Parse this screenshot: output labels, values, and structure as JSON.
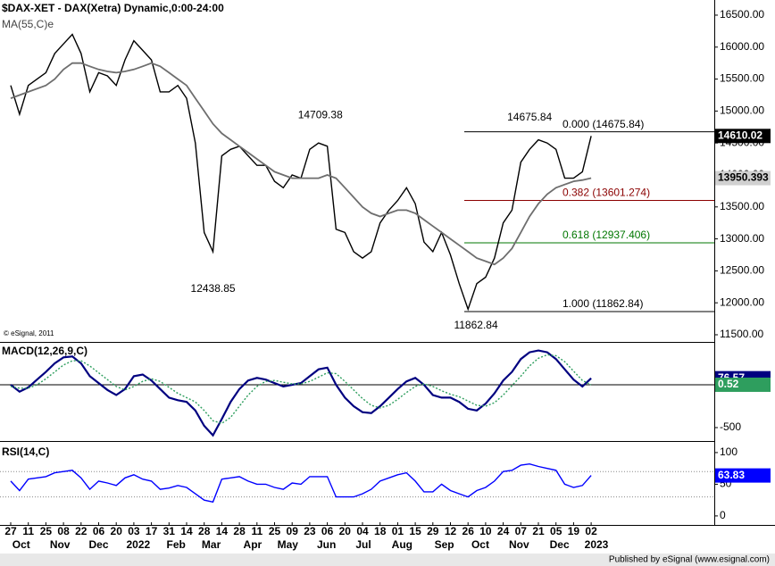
{
  "chart_data": [
    {
      "type": "line",
      "title": "$DAX-XET - DAX(Xetra) Dynamic,0:00-24:00",
      "subtitle": "MA(55,C)e",
      "source": "© eSignal, 2011",
      "publisher": "Published by eSignal (www.esignal.com)",
      "xticks": [
        "27",
        "11",
        "25",
        "08",
        "22",
        "06",
        "20",
        "03",
        "17",
        "31",
        "14",
        "28",
        "14",
        "28",
        "11",
        "25",
        "09",
        "23",
        "06",
        "20",
        "04",
        "18",
        "01",
        "15",
        "29",
        "12",
        "26",
        "10",
        "24",
        "07",
        "21",
        "05",
        "19",
        "02"
      ],
      "months": [
        "Oct",
        "Nov",
        "Dec",
        "2022",
        "Feb",
        "Mar",
        "Apr",
        "May",
        "Jun",
        "Jul",
        "Aug",
        "Sep",
        "Oct",
        "Nov",
        "Dec",
        "2023"
      ],
      "ylim": [
        11402,
        16737
      ],
      "yticks": [
        {
          "value": 16500,
          "label": "16500.00"
        },
        {
          "value": 16000,
          "label": "16000.00"
        },
        {
          "value": 15500,
          "label": "15500.00"
        },
        {
          "value": 15000,
          "label": "15000.00"
        },
        {
          "value": 14500,
          "label": "14500.00"
        },
        {
          "value": 14000,
          "label": "14000.00"
        },
        {
          "value": 13500,
          "label": "13500.00"
        },
        {
          "value": 13000,
          "label": "13000.00"
        },
        {
          "value": 12500,
          "label": "12500.00"
        },
        {
          "value": 12000,
          "label": "12000.00"
        },
        {
          "value": 11500,
          "label": "11500.00"
        }
      ],
      "series": [
        {
          "name": "$DAX-XET",
          "color": "#000000",
          "values": [
            15400,
            14950,
            15400,
            15500,
            15600,
            15900,
            16050,
            16200,
            15900,
            15300,
            15600,
            15550,
            15400,
            15800,
            16100,
            15950,
            15800,
            15300,
            15300,
            15400,
            15200,
            14500,
            13100,
            12800,
            14300,
            14400,
            14450,
            14300,
            14150,
            14150,
            13900,
            13800,
            14000,
            13950,
            14400,
            14500,
            14450,
            13150,
            13100,
            12800,
            12700,
            12800,
            13250,
            13450,
            13600,
            13800,
            13550,
            12950,
            12800,
            13100,
            12750,
            12300,
            11900,
            12300,
            12400,
            12700,
            13250,
            13450,
            14200,
            14400,
            14550,
            14500,
            14400,
            13950,
            13950,
            14050,
            14610.02
          ]
        },
        {
          "name": "MA(55,C)",
          "color": "#6e6e6e",
          "values": [
            15200,
            15250,
            15300,
            15350,
            15400,
            15500,
            15650,
            15750,
            15750,
            15700,
            15650,
            15620,
            15600,
            15620,
            15650,
            15700,
            15750,
            15700,
            15600,
            15500,
            15400,
            15200,
            15000,
            14800,
            14650,
            14550,
            14450,
            14350,
            14250,
            14150,
            14050,
            14000,
            13950,
            13950,
            13950,
            13950,
            14000,
            13950,
            13800,
            13650,
            13500,
            13400,
            13350,
            13400,
            13450,
            13450,
            13400,
            13300,
            13200,
            13100,
            13000,
            12900,
            12800,
            12700,
            12650,
            12600,
            12700,
            12850,
            13100,
            13350,
            13550,
            13700,
            13800,
            13850,
            13900,
            13920,
            13950.393
          ]
        }
      ],
      "fib": [
        {
          "label": "0.000 (14675.84)",
          "value": 14675.84,
          "color": "#000000"
        },
        {
          "label": "0.382 (13601.274)",
          "value": 13601.274,
          "color": "#8b0000"
        },
        {
          "label": "0.618 (12937.406)",
          "value": 12937.406,
          "color": "#007700"
        },
        {
          "label": "1.000 (11862.84)",
          "value": 11862.84,
          "color": "#000000"
        }
      ],
      "annotations": [
        {
          "label": "14709.38",
          "value": 14709.38
        },
        {
          "label": "14675.84",
          "value": 14675.84
        },
        {
          "label": "12438.85",
          "value": 12438.85
        },
        {
          "label": "11862.84",
          "value": 11862.84
        }
      ]
    },
    {
      "type": "line",
      "title": "MACD(12,26,9,C)",
      "ylim": [
        -615,
        490
      ],
      "yticks": [
        -500
      ],
      "series": [
        {
          "name": "MACD",
          "color": "#000080",
          "values": [
            0,
            -80,
            -30,
            60,
            150,
            250,
            320,
            330,
            250,
            100,
            20,
            -60,
            -120,
            -50,
            100,
            120,
            50,
            -50,
            -150,
            -180,
            -200,
            -300,
            -480,
            -590,
            -400,
            -200,
            -50,
            50,
            80,
            60,
            20,
            -20,
            0,
            20,
            100,
            180,
            200,
            0,
            -150,
            -250,
            -320,
            -330,
            -250,
            -150,
            -50,
            40,
            80,
            0,
            -120,
            -150,
            -150,
            -200,
            -280,
            -300,
            -220,
            -100,
            50,
            150,
            300,
            380,
            400,
            380,
            300,
            180,
            60,
            -20,
            76.57
          ]
        },
        {
          "name": "Signal",
          "color": "#2e9e5e",
          "values": [
            -20,
            -40,
            -40,
            0,
            70,
            150,
            230,
            280,
            280,
            220,
            140,
            60,
            -20,
            -60,
            -20,
            40,
            70,
            40,
            -30,
            -100,
            -150,
            -200,
            -300,
            -420,
            -450,
            -380,
            -250,
            -120,
            -20,
            40,
            50,
            30,
            10,
            10,
            40,
            90,
            140,
            130,
            40,
            -60,
            -160,
            -240,
            -270,
            -240,
            -170,
            -90,
            -20,
            10,
            -20,
            -70,
            -110,
            -140,
            -190,
            -240,
            -250,
            -210,
            -120,
            -10,
            100,
            220,
            310,
            350,
            340,
            270,
            160,
            50,
            0.52
          ]
        }
      ]
    },
    {
      "type": "line",
      "title": "RSI(14,C)",
      "ylim": [
        -10,
        114
      ],
      "yticks": [
        100,
        50,
        0
      ],
      "levels": [
        70,
        30
      ],
      "series": [
        {
          "name": "RSI",
          "color": "#0000ff",
          "values": [
            55,
            40,
            58,
            60,
            62,
            68,
            70,
            72,
            60,
            42,
            55,
            52,
            48,
            60,
            65,
            58,
            55,
            42,
            44,
            48,
            45,
            35,
            25,
            22,
            58,
            60,
            62,
            55,
            50,
            50,
            45,
            42,
            52,
            50,
            62,
            62,
            62,
            30,
            30,
            30,
            35,
            42,
            55,
            60,
            65,
            68,
            55,
            38,
            38,
            50,
            40,
            35,
            30,
            40,
            45,
            55,
            70,
            72,
            80,
            82,
            78,
            75,
            72,
            50,
            45,
            48,
            63.83
          ]
        }
      ]
    }
  ]
}
